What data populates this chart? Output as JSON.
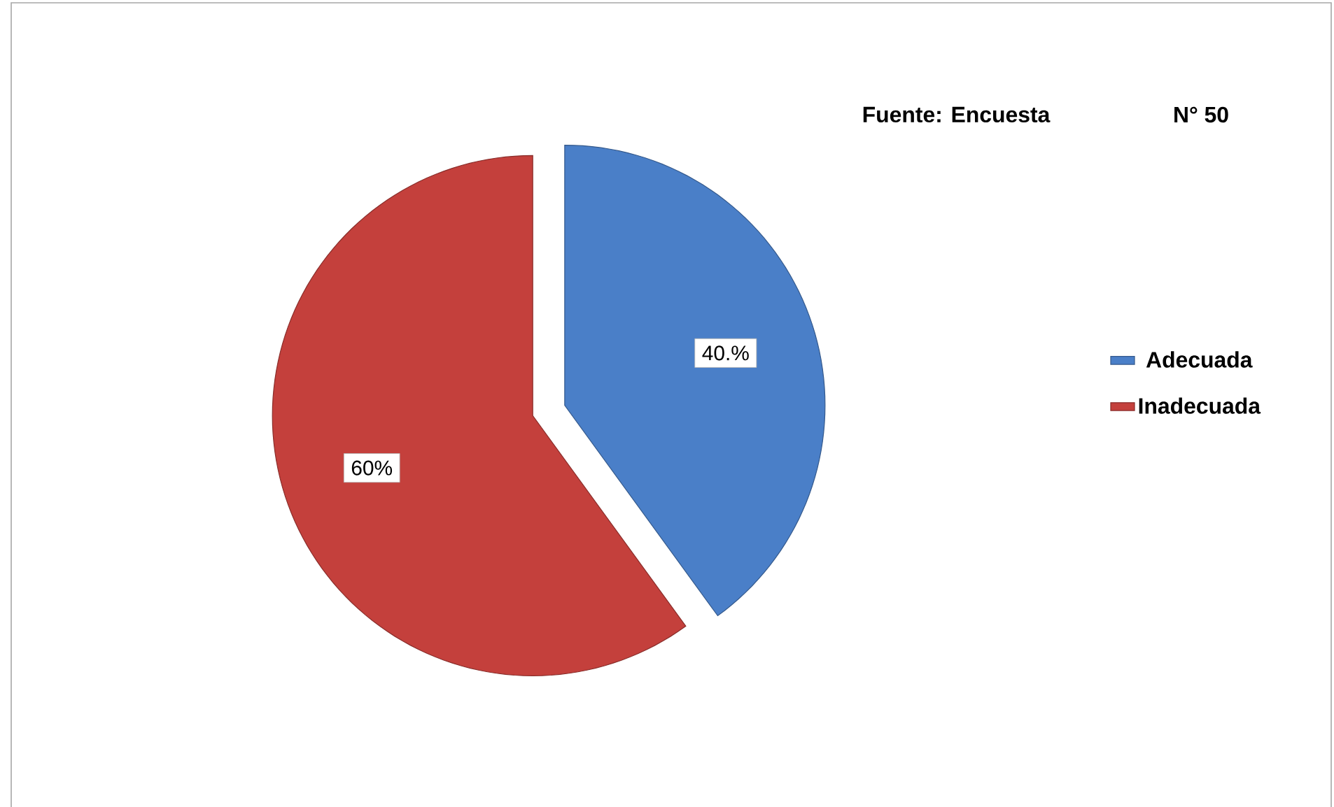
{
  "chart_data": {
    "type": "pie",
    "categories": [
      "Adecuada",
      "Inadecuada"
    ],
    "values": [
      40,
      60
    ],
    "colors": [
      "#4a7fc8",
      "#c4403c"
    ],
    "value_labels": [
      "40.%",
      "60%"
    ],
    "legend": "right",
    "annotations": [
      "Fuente: Encuesta",
      "N° 50"
    ]
  }
}
